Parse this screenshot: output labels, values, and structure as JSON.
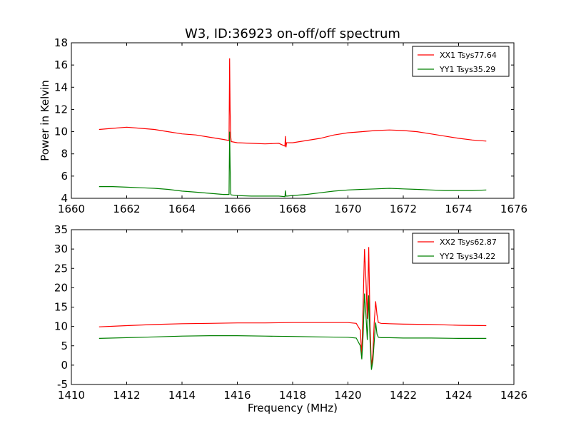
{
  "title": "W3, ID:36923 on-off/off spectrum",
  "colors": {
    "red": "#ff0000",
    "green": "#008000"
  },
  "chart_data": [
    {
      "type": "line",
      "title": "W3, ID:36923 on-off/off spectrum",
      "xlabel": "",
      "ylabel": "Power in Kelvin",
      "xlim": [
        1660,
        1676
      ],
      "ylim": [
        4,
        18
      ],
      "xticks": [
        1660,
        1662,
        1664,
        1666,
        1668,
        1670,
        1672,
        1674,
        1676
      ],
      "yticks": [
        4,
        6,
        8,
        10,
        12,
        14,
        16,
        18
      ],
      "legend_position": "top-right",
      "grid": false,
      "series": [
        {
          "name": "XX1 Tsys77.64",
          "color": "#ff0000",
          "x": [
            1661.0,
            1661.5,
            1662.0,
            1662.5,
            1663.0,
            1663.5,
            1664.0,
            1664.5,
            1665.0,
            1665.5,
            1665.7,
            1665.72,
            1665.74,
            1665.76,
            1665.78,
            1665.8,
            1666.0,
            1666.5,
            1667.0,
            1667.5,
            1667.72,
            1667.74,
            1667.76,
            1667.78,
            1667.8,
            1668.0,
            1668.5,
            1669.0,
            1669.5,
            1670.0,
            1670.5,
            1671.0,
            1671.5,
            1672.0,
            1672.5,
            1673.0,
            1673.5,
            1674.0,
            1674.5,
            1675.0
          ],
          "y": [
            10.2,
            10.3,
            10.4,
            10.3,
            10.2,
            10.0,
            9.8,
            9.7,
            9.5,
            9.3,
            9.2,
            16.6,
            12.0,
            9.6,
            9.1,
            9.1,
            9.0,
            8.95,
            8.9,
            8.95,
            8.7,
            9.6,
            8.6,
            9.0,
            9.0,
            9.0,
            9.2,
            9.4,
            9.7,
            9.9,
            10.0,
            10.1,
            10.15,
            10.1,
            10.0,
            9.8,
            9.6,
            9.4,
            9.25,
            9.15
          ]
        },
        {
          "name": "YY1 Tsys35.29",
          "color": "#008000",
          "x": [
            1661.0,
            1661.5,
            1662.0,
            1662.5,
            1663.0,
            1663.5,
            1664.0,
            1664.5,
            1665.0,
            1665.5,
            1665.7,
            1665.72,
            1665.74,
            1665.76,
            1665.78,
            1665.8,
            1666.0,
            1666.5,
            1667.0,
            1667.5,
            1667.72,
            1667.74,
            1667.76,
            1667.78,
            1667.8,
            1668.0,
            1668.5,
            1669.0,
            1669.5,
            1670.0,
            1670.5,
            1671.0,
            1671.5,
            1672.0,
            1672.5,
            1673.0,
            1673.5,
            1674.0,
            1674.5,
            1675.0
          ],
          "y": [
            5.05,
            5.05,
            5.0,
            4.95,
            4.9,
            4.8,
            4.65,
            4.55,
            4.45,
            4.35,
            4.35,
            10.0,
            7.0,
            4.4,
            4.3,
            4.3,
            4.25,
            4.2,
            4.2,
            4.2,
            4.15,
            4.7,
            4.2,
            4.2,
            4.2,
            4.25,
            4.35,
            4.5,
            4.65,
            4.75,
            4.8,
            4.85,
            4.9,
            4.85,
            4.8,
            4.75,
            4.7,
            4.7,
            4.7,
            4.75
          ]
        }
      ]
    },
    {
      "type": "line",
      "title": "",
      "xlabel": "Frequency (MHz)",
      "ylabel": "",
      "xlim": [
        1410,
        1426
      ],
      "ylim": [
        -5,
        35
      ],
      "xticks": [
        1410,
        1412,
        1414,
        1416,
        1418,
        1420,
        1422,
        1424,
        1426
      ],
      "yticks": [
        -5,
        0,
        5,
        10,
        15,
        20,
        25,
        30,
        35
      ],
      "legend_position": "top-right",
      "grid": false,
      "series": [
        {
          "name": "XX2 Tsys62.87",
          "color": "#ff0000",
          "x": [
            1411.0,
            1412.0,
            1413.0,
            1414.0,
            1415.0,
            1416.0,
            1417.0,
            1418.0,
            1419.0,
            1420.0,
            1420.3,
            1420.45,
            1420.5,
            1420.55,
            1420.6,
            1420.65,
            1420.7,
            1420.75,
            1420.8,
            1420.85,
            1420.9,
            1420.95,
            1421.0,
            1421.05,
            1421.1,
            1421.2,
            1421.5,
            1422.0,
            1423.0,
            1424.0,
            1425.0
          ],
          "y": [
            9.9,
            10.2,
            10.5,
            10.7,
            10.8,
            10.9,
            10.9,
            11.0,
            11.0,
            11.0,
            10.8,
            9.0,
            2.0,
            16.0,
            30.0,
            22.0,
            12.0,
            30.5,
            10.0,
            -0.5,
            3.0,
            11.0,
            16.5,
            13.0,
            11.0,
            10.8,
            10.7,
            10.6,
            10.5,
            10.3,
            10.2
          ]
        },
        {
          "name": "YY2 Tsys34.22",
          "color": "#008000",
          "x": [
            1411.0,
            1412.0,
            1413.0,
            1414.0,
            1415.0,
            1416.0,
            1417.0,
            1418.0,
            1419.0,
            1420.0,
            1420.3,
            1420.45,
            1420.5,
            1420.55,
            1420.6,
            1420.65,
            1420.7,
            1420.75,
            1420.8,
            1420.85,
            1420.9,
            1420.95,
            1421.0,
            1421.05,
            1421.1,
            1421.2,
            1421.5,
            1422.0,
            1423.0,
            1424.0,
            1425.0
          ],
          "y": [
            6.9,
            7.1,
            7.3,
            7.5,
            7.6,
            7.6,
            7.5,
            7.4,
            7.3,
            7.2,
            7.0,
            5.0,
            1.5,
            8.0,
            18.5,
            13.0,
            6.5,
            18.0,
            6.0,
            -1.2,
            1.0,
            6.0,
            11.0,
            8.0,
            7.2,
            7.1,
            7.1,
            7.0,
            7.0,
            6.9,
            6.9
          ]
        }
      ]
    }
  ]
}
